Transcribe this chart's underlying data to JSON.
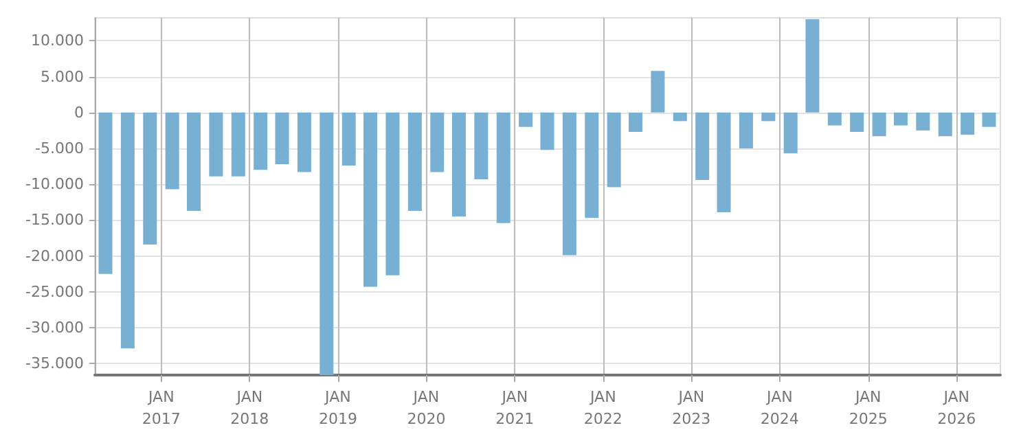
{
  "chart_data": {
    "type": "bar",
    "color": "#78b0d3",
    "x": [
      "2016-05-15",
      "2016-08-15",
      "2016-11-15",
      "2017-02-15",
      "2017-05-15",
      "2017-08-15",
      "2017-11-15",
      "2018-02-15",
      "2018-05-15",
      "2018-08-15",
      "2018-11-15",
      "2019-02-15",
      "2019-05-15",
      "2019-08-15",
      "2019-11-15",
      "2020-02-15",
      "2020-05-15",
      "2020-08-15",
      "2020-11-15",
      "2021-02-15",
      "2021-05-15",
      "2021-08-15",
      "2021-11-15",
      "2022-02-15",
      "2022-05-15",
      "2022-08-15",
      "2022-11-15",
      "2023-02-15",
      "2023-05-15",
      "2023-08-15",
      "2023-11-15",
      "2024-02-15",
      "2024-05-15",
      "2024-08-15",
      "2024-11-15",
      "2025-02-15",
      "2025-05-15",
      "2025-08-15",
      "2025-11-15",
      "2026-02-15",
      "2026-05-15"
    ],
    "values": [
      -22500,
      -32900,
      -18400,
      -10700,
      -13700,
      -8900,
      -8900,
      -8000,
      -7200,
      -8300,
      -36600,
      -7400,
      -24300,
      -22700,
      -13700,
      -8300,
      -14500,
      -9300,
      -15400,
      -2000,
      -5200,
      -19900,
      -14700,
      -10400,
      -2700,
      5800,
      -1200,
      -9400,
      -13900,
      -5000,
      -1200,
      -5700,
      13000,
      -1800,
      -2700,
      -3300,
      -1800,
      -2500,
      -3300,
      -3100,
      -2000
    ],
    "xlim": [
      "2016-04-01",
      "2026-07-01"
    ],
    "xticks": [
      {
        "value": "2017-01-01",
        "label": "JAN\n2017"
      },
      {
        "value": "2018-01-01",
        "label": "JAN\n2018"
      },
      {
        "value": "2019-01-01",
        "label": "JAN\n2019"
      },
      {
        "value": "2020-01-01",
        "label": "JAN\n2020"
      },
      {
        "value": "2021-01-01",
        "label": "JAN\n2021"
      },
      {
        "value": "2022-01-01",
        "label": "JAN\n2022"
      },
      {
        "value": "2023-01-01",
        "label": "JAN\n2023"
      },
      {
        "value": "2024-01-01",
        "label": "JAN\n2024"
      },
      {
        "value": "2025-01-01",
        "label": "JAN\n2025"
      },
      {
        "value": "2026-01-01",
        "label": "JAN\n2026"
      }
    ],
    "ylim": [
      -36600,
      13200
    ],
    "yticks": [
      {
        "value": -35000,
        "label": "-35.000"
      },
      {
        "value": -30000,
        "label": "-30.000"
      },
      {
        "value": -25000,
        "label": "-25.000"
      },
      {
        "value": -20000,
        "label": "-20.000"
      },
      {
        "value": -15000,
        "label": "-15.000"
      },
      {
        "value": -10000,
        "label": "-10.000"
      },
      {
        "value": -5000,
        "label": "-5.000"
      },
      {
        "value": 0,
        "label": "0"
      },
      {
        "value": 5000,
        "label": "5.000"
      },
      {
        "value": 10000,
        "label": "10.000"
      }
    ],
    "grid": true
  }
}
